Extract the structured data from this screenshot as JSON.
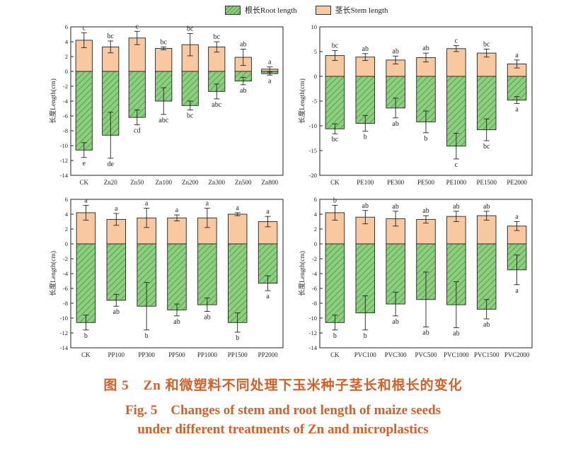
{
  "legend": {
    "root_label": "根长Root length",
    "stem_label": "茎长Stem length",
    "root_color": "#8ccf7e",
    "stem_color": "#f8c8a0"
  },
  "caption": {
    "cn": "图 5　Zn 和微塑料不同处理下玉米种子茎长和根长的变化",
    "en_line1": "Fig. 5　Changes of stem and root length of maize seeds",
    "en_line2": "under different treatments of Zn and microplastics",
    "color": "#d3602a"
  },
  "chart_data": [
    {
      "type": "bar",
      "panel": "top-left",
      "ylabel": "长度Length(cm)",
      "ylim": [
        -14,
        6
      ],
      "yticks": [
        6,
        4,
        2,
        0,
        -2,
        -4,
        -6,
        -8,
        -10,
        -12,
        -14
      ],
      "categories": [
        "CK",
        "Zn20",
        "Zn50",
        "Zn100",
        "Zn200",
        "Zn300",
        "Zn500",
        "Zn800"
      ],
      "series": [
        {
          "name": "茎长Stem length",
          "values": [
            4.2,
            3.3,
            4.5,
            3.1,
            3.6,
            3.3,
            1.9,
            0.3
          ],
          "errors": [
            1.0,
            0.8,
            0.9,
            0.2,
            1.5,
            0.7,
            1.1,
            0.3
          ],
          "labels": [
            "c",
            "bc",
            "c",
            "bc",
            "bc",
            "bc",
            "ab",
            "a"
          ]
        },
        {
          "name": "根长Root length",
          "values": [
            -10.6,
            -8.6,
            -6.2,
            -4.0,
            -4.6,
            -2.7,
            -1.3,
            -0.3
          ],
          "errors": [
            1.0,
            3.1,
            1.0,
            1.8,
            0.6,
            1.0,
            0.5,
            0.2
          ],
          "labels": [
            "e",
            "de",
            "cd",
            "abc",
            "bc",
            "abc",
            "ab",
            "a"
          ]
        }
      ]
    },
    {
      "type": "bar",
      "panel": "top-right",
      "ylabel": "长度Length(cm)",
      "ylim": [
        -20,
        10
      ],
      "yticks": [
        10,
        5,
        0,
        -5,
        -10,
        -15,
        -20
      ],
      "categories": [
        "CK",
        "PE100",
        "PE300",
        "PE500",
        "PE1000",
        "PE1500",
        "PE2000"
      ],
      "series": [
        {
          "name": "茎长Stem length",
          "values": [
            4.2,
            3.9,
            3.3,
            3.8,
            5.6,
            4.7,
            2.5
          ],
          "errors": [
            1.0,
            0.7,
            0.8,
            0.9,
            0.6,
            0.8,
            0.8
          ],
          "labels": [
            "bc",
            "ab",
            "ab",
            "ab",
            "c",
            "bc",
            "a"
          ]
        },
        {
          "name": "根长Root length",
          "values": [
            -10.6,
            -9.5,
            -6.4,
            -9.2,
            -14.1,
            -10.8,
            -4.8
          ],
          "errors": [
            1.0,
            1.6,
            2.0,
            2.2,
            2.6,
            2.2,
            0.7
          ],
          "labels": [
            "bc",
            "b",
            "ab",
            "b",
            "c",
            "bc",
            "a"
          ]
        }
      ]
    },
    {
      "type": "bar",
      "panel": "bottom-left",
      "ylabel": "长度Length(cm)",
      "ylim": [
        -14,
        6
      ],
      "yticks": [
        6,
        4,
        2,
        0,
        -2,
        -4,
        -6,
        -8,
        -10,
        -12,
        -14
      ],
      "categories": [
        "CK",
        "PP100",
        "PP300",
        "PP500",
        "PP1000",
        "PP1500",
        "PP2000"
      ],
      "series": [
        {
          "name": "茎长Stem length",
          "values": [
            4.2,
            3.3,
            3.5,
            3.5,
            3.5,
            4.0,
            3.0
          ],
          "errors": [
            1.0,
            0.8,
            1.3,
            0.4,
            1.3,
            0.2,
            0.7
          ],
          "labels": [
            "a",
            "a",
            "a",
            "a",
            "a",
            "a",
            "a"
          ]
        },
        {
          "name": "根长Root length",
          "values": [
            -10.6,
            -7.6,
            -8.4,
            -8.9,
            -8.2,
            -10.6,
            -5.3
          ],
          "errors": [
            1.0,
            0.8,
            3.2,
            0.8,
            0.9,
            1.3,
            1.0
          ],
          "labels": [
            "b",
            "ab",
            "b",
            "ab",
            "ab",
            "b",
            "a"
          ]
        }
      ]
    },
    {
      "type": "bar",
      "panel": "bottom-right",
      "ylabel": "长度Length(cm)",
      "ylim": [
        -14,
        6
      ],
      "yticks": [
        6,
        4,
        2,
        0,
        -2,
        -4,
        -6,
        -8,
        -10,
        -12,
        -14
      ],
      "categories": [
        "CK",
        "PVC100",
        "PVC300",
        "PVC500",
        "PVC1000",
        "PVC1500",
        "PVC2000"
      ],
      "series": [
        {
          "name": "茎长Stem length",
          "values": [
            4.2,
            3.6,
            3.4,
            3.3,
            3.7,
            3.8,
            2.4
          ],
          "errors": [
            1.0,
            0.9,
            1.0,
            0.5,
            0.7,
            0.6,
            0.6
          ],
          "labels": [
            "b",
            "ab",
            "ab",
            "ab",
            "ab",
            "ab",
            "a"
          ]
        },
        {
          "name": "根长Root length",
          "values": [
            -10.6,
            -9.3,
            -8.1,
            -7.5,
            -8.2,
            -8.8,
            -3.5
          ],
          "errors": [
            1.0,
            2.3,
            1.6,
            3.7,
            3.1,
            1.3,
            2.0
          ],
          "labels": [
            "b",
            "b",
            "ab",
            "ab",
            "ab",
            "ab",
            "a"
          ]
        }
      ]
    }
  ]
}
